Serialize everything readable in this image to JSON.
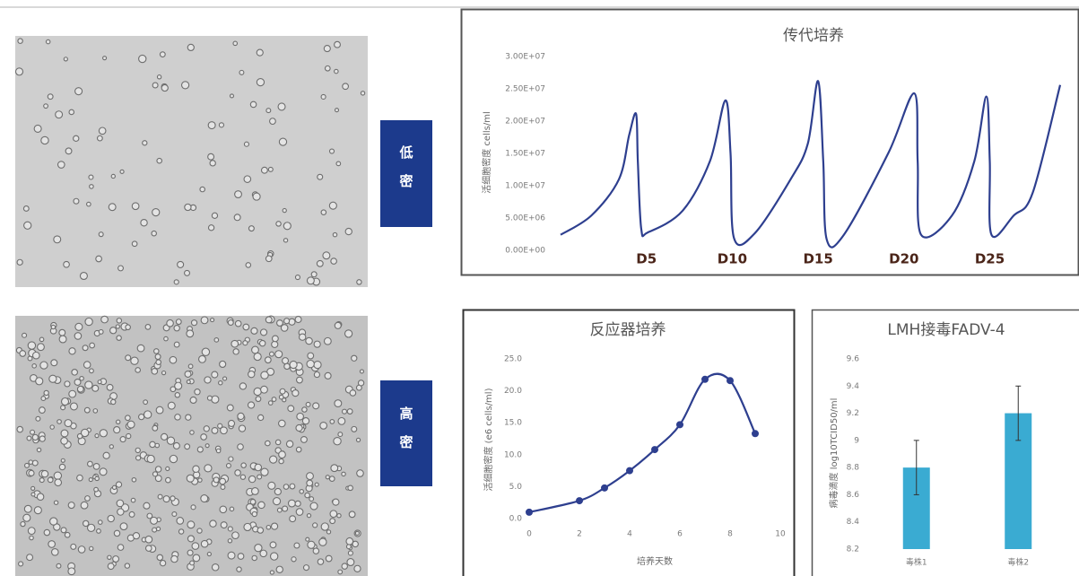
{
  "labels": [
    "低密",
    "高密"
  ],
  "chart_data": [
    {
      "type": "line",
      "title": "传代培养",
      "y_label": "活细胞密度 cells/ml",
      "color": "#2e3f8f",
      "markers": false,
      "x": [
        0,
        1.8,
        3.4,
        4.0,
        4.4,
        4.5,
        4.7,
        5.1,
        7.1,
        8.7,
        9.6,
        9.9,
        10.1,
        11.3,
        13.4,
        14.4,
        15.0,
        15.3,
        15.5,
        16.5,
        19.1,
        20.6,
        20.8,
        21.0,
        22.8,
        24.1,
        24.8,
        25.0,
        25.1,
        26.4,
        27.5,
        29.1
      ],
      "values": [
        2400000,
        5400000,
        11000000,
        17900000,
        21100000,
        13800000,
        3300000,
        2800000,
        6100000,
        13800000,
        23200000,
        15000000,
        1900000,
        2600000,
        11000000,
        16500000,
        26200000,
        13800000,
        1700000,
        2400000,
        15100000,
        24300000,
        13800000,
        2400000,
        5400000,
        13800000,
        23800000,
        13800000,
        2400000,
        5400000,
        8900000,
        25600000
      ],
      "xlim": [
        0,
        29.1
      ],
      "xticks": [
        {
          "value": 5,
          "label": "D5"
        },
        {
          "value": 10,
          "label": "D10"
        },
        {
          "value": 15,
          "label": "D15"
        },
        {
          "value": 20,
          "label": "D20"
        },
        {
          "value": 25,
          "label": "D25"
        }
      ],
      "ylim": [
        0,
        30000000
      ],
      "yticks": [
        {
          "value": 0,
          "label": "0.00E+00"
        },
        {
          "value": 5000000,
          "label": "5.00E+06"
        },
        {
          "value": 10000000,
          "label": "1.00E+07"
        },
        {
          "value": 15000000,
          "label": "1.50E+07"
        },
        {
          "value": 20000000,
          "label": "2.00E+07"
        },
        {
          "value": 25000000,
          "label": "2.50E+07"
        },
        {
          "value": 30000000,
          "label": "3.00E+07"
        }
      ]
    },
    {
      "type": "line",
      "title": "反应器培养",
      "x_label": "培养天数",
      "y_label": "活细胞密度 (e6 cells/ml)",
      "color": "#2e3f8f",
      "markers": true,
      "x": [
        0,
        2,
        3,
        4,
        5,
        6,
        7,
        8,
        9
      ],
      "values": [
        1.0,
        2.8,
        4.8,
        7.5,
        10.8,
        14.7,
        21.8,
        21.6,
        13.3
      ],
      "xlim": [
        0,
        10
      ],
      "xticks": [
        0,
        2,
        4,
        6,
        8,
        10
      ],
      "ylim": [
        0,
        25
      ],
      "yticks": [
        {
          "value": 0,
          "label": "0.0"
        },
        {
          "value": 5,
          "label": "5.0"
        },
        {
          "value": 10,
          "label": "10.0"
        },
        {
          "value": 15,
          "label": "15.0"
        },
        {
          "value": 20,
          "label": "20.0"
        },
        {
          "value": 25,
          "label": "25.0"
        }
      ]
    },
    {
      "type": "bar",
      "title": "LMH接毒FADV-4",
      "y_label": "病毒滴度 log10TCID50/ml",
      "color": "#3aabd2",
      "categories": [
        "毒株1",
        "毒株2"
      ],
      "values": [
        8.8,
        9.2
      ],
      "errors": [
        0.2,
        0.2
      ],
      "ylim": [
        8.2,
        9.6
      ],
      "yticks": [
        8.2,
        8.4,
        8.6,
        8.8,
        9,
        9.2,
        9.4,
        9.6
      ]
    }
  ]
}
